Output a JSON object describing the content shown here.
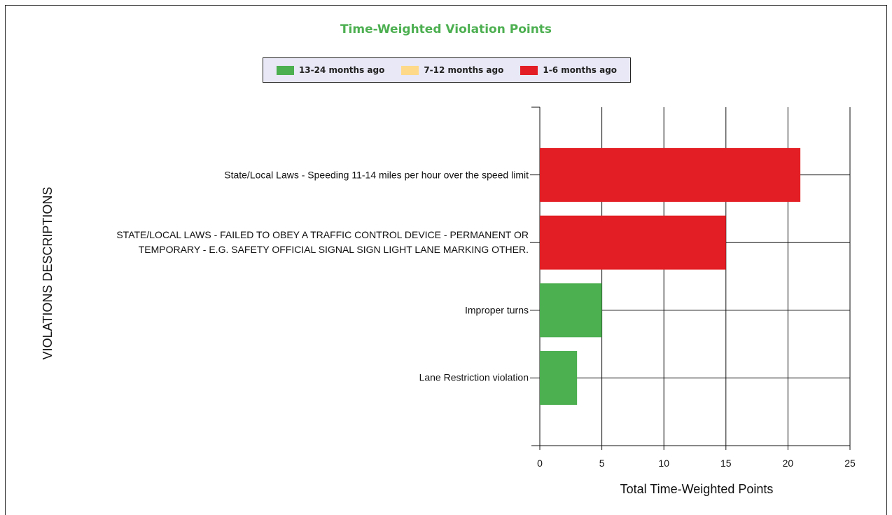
{
  "chart_data": {
    "type": "stacked_barh",
    "title": "Time-Weighted Violation Points",
    "xlabel": "Total Time-Weighted Points",
    "ylabel": "VIOLATIONS DESCRIPTIONS",
    "categories": [
      "State/Local Laws - Speeding 11-14 miles per hour over the speed limit",
      "STATE/LOCAL LAWS - FAILED TO OBEY A TRAFFIC CONTROL DEVICE - PERMANENT OR TEMPORARY - E.G. SAFETY OFFICIAL SIGNAL SIGN LIGHT LANE MARKING OTHER.",
      "Improper turns",
      "Lane Restriction violation"
    ],
    "series": [
      {
        "name": "13-24 months ago",
        "color": "#4caf50",
        "values": [
          0,
          0,
          5,
          3
        ]
      },
      {
        "name": "7-12 months ago",
        "color": "#ffd98a",
        "values": [
          0,
          0,
          0,
          0
        ]
      },
      {
        "name": "1-6 months ago",
        "color": "#e31e24",
        "values": [
          21,
          15,
          0,
          0
        ]
      }
    ],
    "xlim": [
      0,
      25
    ],
    "xticks": [
      0,
      5,
      10,
      15,
      20,
      25
    ],
    "grid": true
  }
}
